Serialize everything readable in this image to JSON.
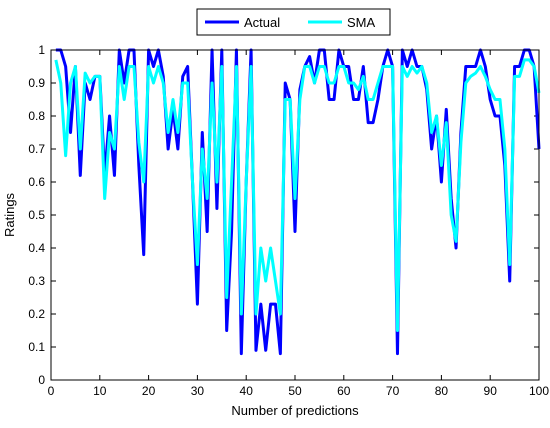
{
  "chart_data": {
    "type": "line",
    "title": "",
    "xlabel": "Number of predictions",
    "ylabel": "Ratings",
    "xlim": [
      0,
      100
    ],
    "ylim": [
      0,
      1
    ],
    "xticks": [
      0,
      10,
      20,
      30,
      40,
      50,
      60,
      70,
      80,
      90,
      100
    ],
    "yticks": [
      0,
      0.1,
      0.2,
      0.3,
      0.4,
      0.5,
      0.6,
      0.7,
      0.8,
      0.9,
      1
    ],
    "grid": false,
    "legend_position": "top-center",
    "x": [
      1,
      2,
      3,
      4,
      5,
      6,
      7,
      8,
      9,
      10,
      11,
      12,
      13,
      14,
      15,
      16,
      17,
      18,
      19,
      20,
      21,
      22,
      23,
      24,
      25,
      26,
      27,
      28,
      29,
      30,
      31,
      32,
      33,
      34,
      35,
      36,
      37,
      38,
      39,
      40,
      41,
      42,
      43,
      44,
      45,
      46,
      47,
      48,
      49,
      50,
      51,
      52,
      53,
      54,
      55,
      56,
      57,
      58,
      59,
      60,
      61,
      62,
      63,
      64,
      65,
      66,
      67,
      68,
      69,
      70,
      71,
      72,
      73,
      74,
      75,
      76,
      77,
      78,
      79,
      80,
      81,
      82,
      83,
      84,
      85,
      86,
      87,
      88,
      89,
      90,
      91,
      92,
      93,
      94,
      95,
      96,
      97,
      98,
      99,
      100
    ],
    "series": [
      {
        "name": "Actual",
        "color": "#0000ff",
        "values": [
          1,
          1,
          0.95,
          0.75,
          0.95,
          0.62,
          0.9,
          0.85,
          0.92,
          0.92,
          0.62,
          0.8,
          0.62,
          1,
          0.9,
          1,
          1,
          0.65,
          0.38,
          1,
          0.95,
          1,
          0.92,
          0.7,
          0.82,
          0.7,
          0.92,
          0.95,
          0.6,
          0.23,
          0.75,
          0.45,
          1,
          0.52,
          1,
          0.15,
          0.45,
          1,
          0.08,
          0.6,
          1,
          0.09,
          0.23,
          0.09,
          0.23,
          0.23,
          0.08,
          0.9,
          0.85,
          0.45,
          0.88,
          0.95,
          0.98,
          0.9,
          1,
          1,
          0.85,
          0.85,
          1,
          0.95,
          0.95,
          0.85,
          0.85,
          0.95,
          0.78,
          0.78,
          0.85,
          0.95,
          1,
          0.95,
          0.08,
          1,
          0.95,
          1,
          0.95,
          0.95,
          0.88,
          0.7,
          0.8,
          0.6,
          0.82,
          0.55,
          0.4,
          0.75,
          0.95,
          0.95,
          0.95,
          1,
          0.95,
          0.85,
          0.8,
          0.8,
          0.65,
          0.3,
          0.95,
          0.95,
          1,
          1,
          0.95,
          0.7
        ]
      },
      {
        "name": "SMA",
        "color": "#00ffff",
        "values": [
          0.97,
          0.9,
          0.68,
          0.9,
          0.95,
          0.7,
          0.93,
          0.9,
          0.92,
          0.92,
          0.55,
          0.75,
          0.7,
          0.95,
          0.85,
          0.95,
          0.95,
          0.72,
          0.6,
          0.95,
          0.9,
          0.95,
          0.9,
          0.75,
          0.85,
          0.75,
          0.9,
          0.9,
          0.6,
          0.35,
          0.7,
          0.55,
          0.9,
          0.6,
          0.95,
          0.25,
          0.6,
          0.95,
          0.2,
          0.6,
          0.95,
          0.2,
          0.4,
          0.3,
          0.4,
          0.3,
          0.2,
          0.85,
          0.85,
          0.55,
          0.85,
          0.95,
          0.95,
          0.9,
          0.95,
          0.95,
          0.9,
          0.9,
          0.95,
          0.95,
          0.9,
          0.9,
          0.88,
          0.92,
          0.85,
          0.85,
          0.9,
          0.95,
          0.95,
          0.95,
          0.15,
          0.95,
          0.92,
          0.95,
          0.93,
          0.95,
          0.9,
          0.75,
          0.8,
          0.65,
          0.78,
          0.5,
          0.42,
          0.72,
          0.9,
          0.92,
          0.93,
          0.95,
          0.92,
          0.88,
          0.85,
          0.85,
          0.7,
          0.35,
          0.92,
          0.92,
          0.97,
          0.97,
          0.95,
          0.87
        ]
      }
    ]
  }
}
